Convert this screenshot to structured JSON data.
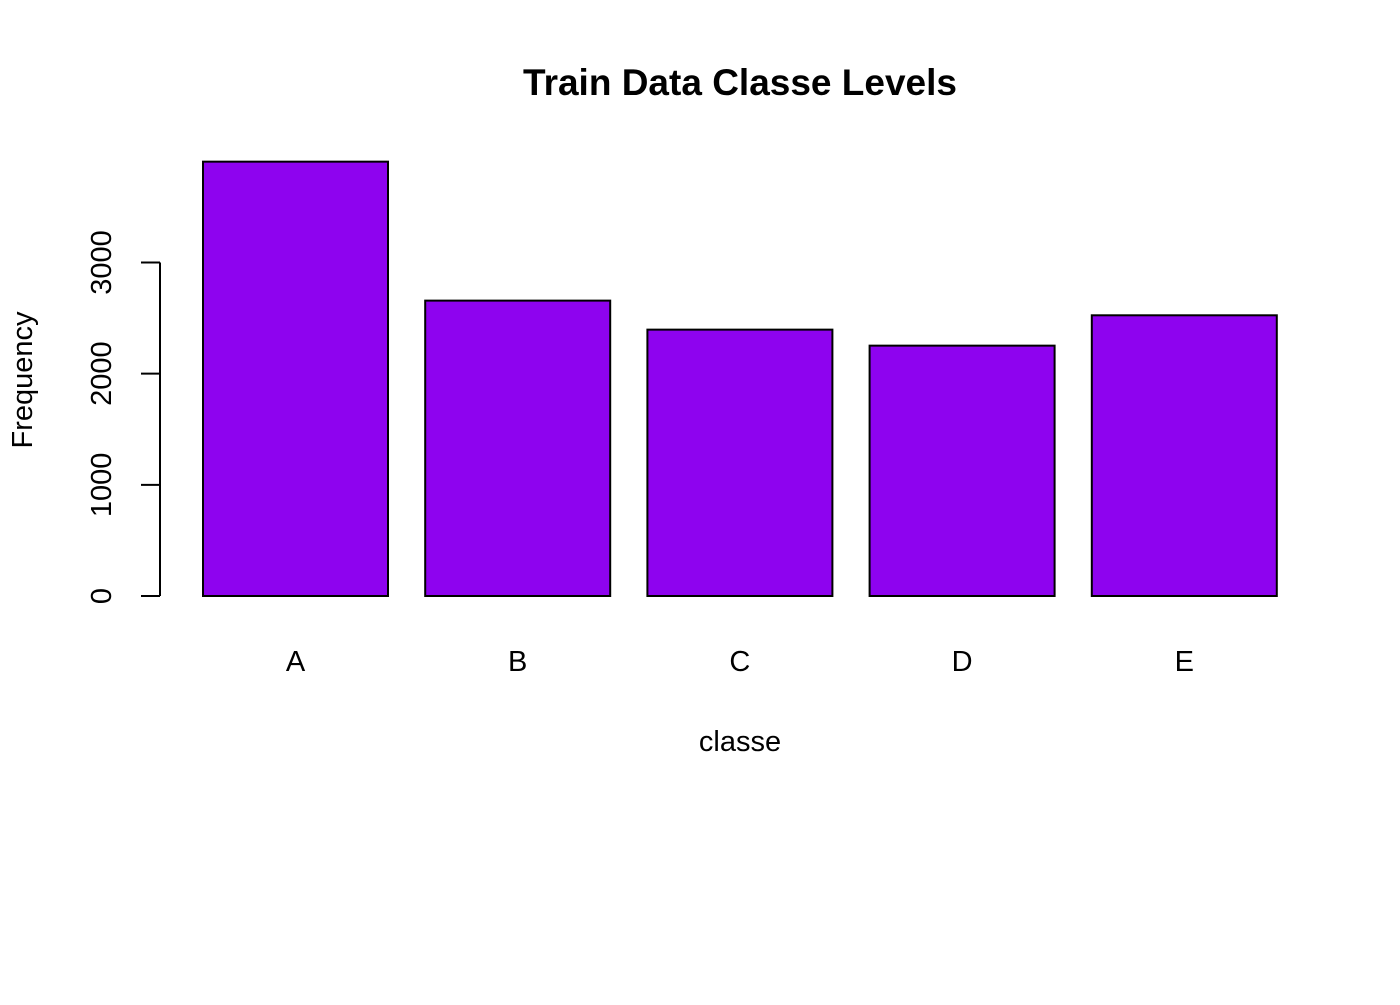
{
  "chart_data": {
    "type": "bar",
    "title": "Train Data Classe Levels",
    "xlabel": "classe",
    "ylabel": "Frequency",
    "categories": [
      "A",
      "B",
      "C",
      "D",
      "E"
    ],
    "values": [
      3907,
      2657,
      2396,
      2252,
      2525
    ],
    "ylim": [
      0,
      3907
    ],
    "y_ticks": [
      0,
      1000,
      2000,
      3000
    ],
    "grid": false,
    "legend": "none",
    "colors": {
      "bar_fill": "#8e03ef",
      "bar_stroke": "#000000",
      "background": "#ffffff"
    }
  }
}
